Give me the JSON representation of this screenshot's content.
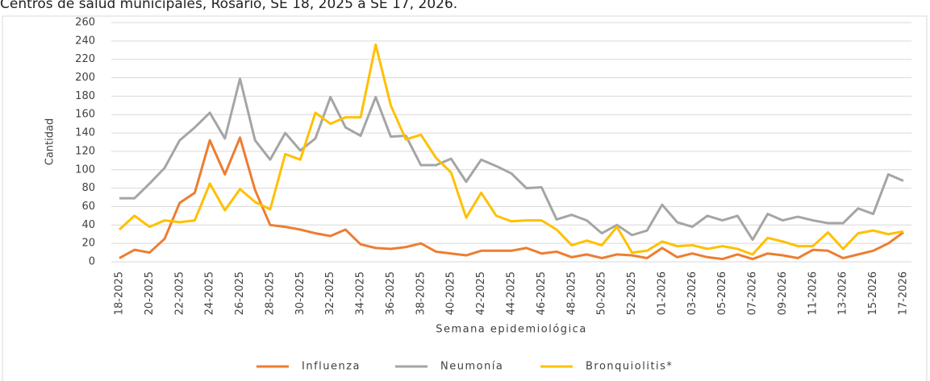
{
  "chart_data": {
    "type": "line",
    "title": "Centros de salud municipales, Rosario, SE 18, 2025 a SE 17, 2026.",
    "x_label": "Semana epidemiológica",
    "y_label": "Cantidad",
    "categories": [
      "18-2025",
      null,
      "20-2025",
      null,
      "22-2025",
      null,
      "24-2025",
      null,
      "26-2025",
      null,
      "28-2025",
      null,
      "30-2025",
      null,
      "32-2025",
      null,
      "34-2025",
      null,
      "36-2025",
      null,
      "38-2025",
      null,
      "40-2025",
      null,
      "42-2025",
      null,
      "44-2025",
      null,
      "46-2025",
      null,
      "48-2025",
      null,
      "50-2025",
      null,
      "52-2025",
      null,
      "01-2026",
      null,
      "03-2026",
      null,
      "05-2026",
      null,
      "07-2026",
      null,
      "09-2026",
      null,
      "11-2026",
      null,
      "13-2026",
      null,
      "15-2026",
      null,
      "17-2026"
    ],
    "series": [
      {
        "name": "Influenza",
        "color": "#ed7d31",
        "values": [
          4,
          13,
          10,
          25,
          64,
          75,
          132,
          95,
          135,
          78,
          40,
          38,
          35,
          31,
          28,
          35,
          19,
          15,
          14,
          16,
          20,
          11,
          9,
          7,
          12,
          12,
          12,
          15,
          9,
          11,
          5,
          8,
          4,
          8,
          7,
          4,
          15,
          5,
          9,
          5,
          3,
          8,
          3,
          9,
          7,
          4,
          13,
          12,
          4,
          8,
          12,
          20,
          32
        ]
      },
      {
        "name": "Neumonía",
        "color": "#a5a5a5",
        "values": [
          69,
          69,
          85,
          102,
          132,
          146,
          162,
          134,
          199,
          132,
          111,
          140,
          121,
          134,
          179,
          146,
          137,
          179,
          136,
          137,
          105,
          105,
          112,
          87,
          111,
          104,
          96,
          80,
          81,
          46,
          51,
          45,
          31,
          40,
          29,
          34,
          62,
          43,
          38,
          50,
          45,
          50,
          24,
          52,
          45,
          49,
          45,
          42,
          42,
          58,
          52,
          95,
          88
        ]
      },
      {
        "name": "Bronquiolitis*",
        "color": "#ffc000",
        "values": [
          35,
          50,
          38,
          45,
          43,
          45,
          85,
          56,
          79,
          65,
          57,
          117,
          111,
          162,
          150,
          157,
          157,
          236,
          170,
          133,
          138,
          113,
          97,
          48,
          75,
          50,
          44,
          45,
          45,
          35,
          18,
          23,
          18,
          38,
          10,
          12,
          22,
          17,
          18,
          14,
          17,
          14,
          8,
          26,
          22,
          17,
          17,
          32,
          14,
          31,
          34,
          30,
          33
        ]
      }
    ],
    "ylim": [
      0,
      260
    ],
    "yticks": [
      0,
      20,
      40,
      60,
      80,
      100,
      120,
      140,
      160,
      180,
      200,
      220,
      240,
      260
    ],
    "grid": true
  }
}
